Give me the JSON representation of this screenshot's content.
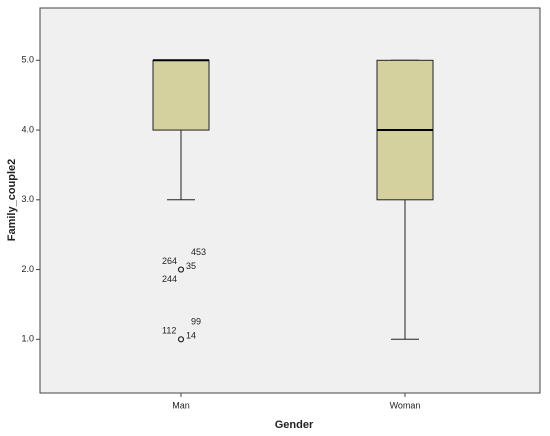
{
  "chart_data": {
    "type": "box",
    "x_label": "Gender",
    "y_label": "Family_couple2",
    "categories": [
      "Man",
      "Woman"
    ],
    "boxes": [
      {
        "min": 3,
        "q1": 4,
        "median": 5,
        "q3": 5,
        "max": 5,
        "outliers": [
          {
            "value": 2,
            "cases": [
              "264",
              "453",
              "35",
              "244"
            ]
          },
          {
            "value": 1,
            "cases": [
              "112",
              "99",
              "14"
            ]
          }
        ]
      },
      {
        "min": 1,
        "q1": 3,
        "median": 4,
        "q3": 5,
        "max": 5,
        "outliers": []
      }
    ],
    "color": "#d4d19f",
    "ylim": [
      0.23,
      5.75
    ],
    "yticks": [
      {
        "value": 1,
        "label": "1.0"
      },
      {
        "value": 2,
        "label": "2.0"
      },
      {
        "value": 3,
        "label": "3.0"
      },
      {
        "value": 4,
        "label": "4.0"
      },
      {
        "value": 5,
        "label": "5.0"
      }
    ]
  }
}
